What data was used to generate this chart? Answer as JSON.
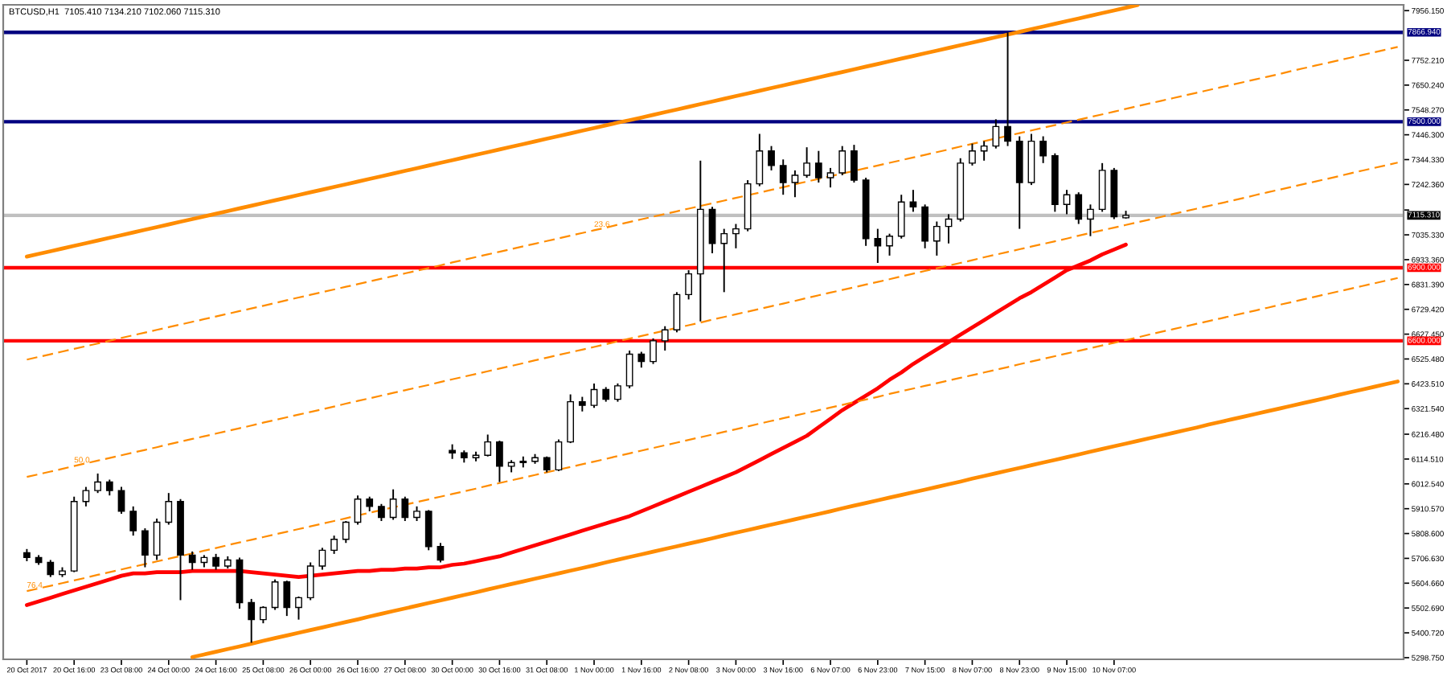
{
  "chart_data": {
    "type": "candlestick",
    "title": "BTCUSD,H1  7105.410 7134.210 7102.060 7115.310",
    "categories": [
      "20 Oct 2017",
      null,
      null,
      null,
      "20 Oct 16:00",
      null,
      null,
      null,
      "23 Oct 08:00",
      null,
      null,
      null,
      "24 Oct 00:00",
      null,
      null,
      null,
      "24 Oct 16:00",
      null,
      null,
      null,
      "25 Oct 08:00",
      null,
      null,
      null,
      "26 Oct 00:00",
      null,
      null,
      null,
      "26 Oct 16:00",
      null,
      null,
      null,
      "27 Oct 08:00",
      null,
      null,
      null,
      "30 Oct 00:00",
      null,
      null,
      null,
      "30 Oct 16:00",
      null,
      null,
      null,
      "31 Oct 08:00",
      null,
      null,
      null,
      "1 Nov 00:00",
      null,
      null,
      null,
      "1 Nov 16:00",
      null,
      null,
      null,
      "2 Nov 08:00",
      null,
      null,
      null,
      "3 Nov 00:00",
      null,
      null,
      null,
      "3 Nov 16:00",
      null,
      null,
      null,
      "6 Nov 07:00",
      null,
      null,
      null,
      "6 Nov 23:00",
      null,
      null,
      null,
      "7 Nov 15:00",
      null,
      null,
      null,
      "8 Nov 07:00",
      null,
      null,
      null,
      "8 Nov 23:00",
      null,
      null,
      null,
      "9 Nov 15:00",
      null,
      null,
      null,
      "10 Nov 07:00",
      null,
      null,
      null,
      null,
      null,
      null,
      null,
      null,
      null,
      null,
      null,
      null,
      null,
      null,
      null,
      null,
      null,
      null,
      null,
      null,
      null,
      null,
      null,
      null
    ],
    "ohlc": [
      [
        5730,
        5745,
        5695,
        5710
      ],
      [
        5710,
        5720,
        5680,
        5690
      ],
      [
        5690,
        5700,
        5630,
        5640
      ],
      [
        5640,
        5670,
        5630,
        5655
      ],
      [
        5655,
        5960,
        5650,
        5940
      ],
      [
        5940,
        6000,
        5920,
        5985
      ],
      [
        5985,
        6055,
        5975,
        6020
      ],
      [
        6020,
        6030,
        5965,
        5985
      ],
      [
        5985,
        6000,
        5890,
        5900
      ],
      [
        5900,
        5920,
        5800,
        5820
      ],
      [
        5820,
        5830,
        5670,
        5720
      ],
      [
        5720,
        5870,
        5700,
        5855
      ],
      [
        5855,
        5975,
        5845,
        5940
      ],
      [
        5940,
        5950,
        5535,
        5720
      ],
      [
        5720,
        5735,
        5660,
        5690
      ],
      [
        5690,
        5720,
        5670,
        5710
      ],
      [
        5710,
        5725,
        5660,
        5675
      ],
      [
        5675,
        5715,
        5665,
        5700
      ],
      [
        5700,
        5710,
        5500,
        5525
      ],
      [
        5525,
        5540,
        5360,
        5455
      ],
      [
        5455,
        5510,
        5440,
        5505
      ],
      [
        5505,
        5620,
        5495,
        5610
      ],
      [
        5610,
        5615,
        5470,
        5505
      ],
      [
        5505,
        5550,
        5455,
        5545
      ],
      [
        5545,
        5690,
        5535,
        5675
      ],
      [
        5675,
        5750,
        5660,
        5740
      ],
      [
        5740,
        5800,
        5725,
        5785
      ],
      [
        5785,
        5860,
        5770,
        5855
      ],
      [
        5855,
        5965,
        5845,
        5950
      ],
      [
        5950,
        5960,
        5900,
        5920
      ],
      [
        5920,
        5930,
        5860,
        5875
      ],
      [
        5875,
        5990,
        5865,
        5950
      ],
      [
        5950,
        5960,
        5860,
        5875
      ],
      [
        5875,
        5920,
        5860,
        5900
      ],
      [
        5900,
        5905,
        5740,
        5755
      ],
      [
        5755,
        5770,
        5690,
        5700
      ],
      [
        6150,
        6175,
        6115,
        6140
      ],
      [
        6140,
        6150,
        6100,
        6120
      ],
      [
        6120,
        6145,
        6105,
        6130
      ],
      [
        6130,
        6215,
        6125,
        6185
      ],
      [
        6185,
        6190,
        6020,
        6085
      ],
      [
        6085,
        6110,
        6060,
        6100
      ],
      [
        6100,
        6125,
        6080,
        6105
      ],
      [
        6105,
        6135,
        6095,
        6120
      ],
      [
        6120,
        6125,
        6060,
        6070
      ],
      [
        6070,
        6195,
        6065,
        6185
      ],
      [
        6185,
        6380,
        6180,
        6350
      ],
      [
        6350,
        6370,
        6310,
        6335
      ],
      [
        6335,
        6425,
        6325,
        6400
      ],
      [
        6400,
        6410,
        6350,
        6360
      ],
      [
        6360,
        6425,
        6350,
        6415
      ],
      [
        6415,
        6560,
        6405,
        6545
      ],
      [
        6545,
        6555,
        6490,
        6515
      ],
      [
        6515,
        6610,
        6505,
        6600
      ],
      [
        6600,
        6660,
        6560,
        6645
      ],
      [
        6645,
        6800,
        6635,
        6790
      ],
      [
        6790,
        6890,
        6770,
        6875
      ],
      [
        6875,
        7340,
        6680,
        7140
      ],
      [
        7140,
        7150,
        6960,
        7000
      ],
      [
        7000,
        7060,
        6800,
        7040
      ],
      [
        7040,
        7080,
        6980,
        7060
      ],
      [
        7060,
        7260,
        7050,
        7245
      ],
      [
        7245,
        7450,
        7235,
        7380
      ],
      [
        7380,
        7400,
        7300,
        7320
      ],
      [
        7320,
        7345,
        7200,
        7250
      ],
      [
        7250,
        7300,
        7190,
        7280
      ],
      [
        7280,
        7395,
        7270,
        7330
      ],
      [
        7330,
        7380,
        7250,
        7270
      ],
      [
        7270,
        7310,
        7230,
        7290
      ],
      [
        7290,
        7400,
        7280,
        7380
      ],
      [
        7380,
        7405,
        7250,
        7260
      ],
      [
        7260,
        7270,
        6990,
        7020
      ],
      [
        7020,
        7060,
        6920,
        6990
      ],
      [
        6990,
        7040,
        6950,
        7030
      ],
      [
        7030,
        7200,
        7020,
        7170
      ],
      [
        7170,
        7220,
        7130,
        7150
      ],
      [
        7150,
        7160,
        6980,
        7010
      ],
      [
        7010,
        7090,
        6950,
        7070
      ],
      [
        7070,
        7120,
        7000,
        7100
      ],
      [
        7100,
        7350,
        7090,
        7330
      ],
      [
        7330,
        7410,
        7320,
        7380
      ],
      [
        7380,
        7420,
        7340,
        7400
      ],
      [
        7400,
        7510,
        7390,
        7480
      ],
      [
        7480,
        7866.94,
        7400,
        7420
      ],
      [
        7420,
        7440,
        7060,
        7250
      ],
      [
        7250,
        7450,
        7240,
        7420
      ],
      [
        7420,
        7440,
        7330,
        7360
      ],
      [
        7360,
        7370,
        7130,
        7160
      ],
      [
        7160,
        7220,
        7120,
        7200
      ],
      [
        7200,
        7210,
        7080,
        7100
      ],
      [
        7100,
        7160,
        7030,
        7140
      ],
      [
        7140,
        7330,
        7130,
        7300
      ],
      [
        7300,
        7310,
        7100,
        7110
      ],
      [
        7105.41,
        7134.21,
        7102.06,
        7115.31
      ],
      null,
      null,
      null,
      null,
      null,
      null,
      null,
      null,
      null,
      null,
      null,
      null,
      null,
      null,
      null,
      null,
      null,
      null,
      null,
      null,
      null,
      null,
      null
    ],
    "series": [
      {
        "type": "line",
        "color": "#ff0000",
        "line_style": "solid",
        "values": [
          5515,
          5530,
          5545,
          5560,
          5575,
          5590,
          5605,
          5620,
          5635,
          5645,
          5645,
          5650,
          5650,
          5650,
          5655,
          5655,
          5655,
          5655,
          5655,
          5650,
          5645,
          5640,
          5635,
          5630,
          5635,
          5640,
          5645,
          5650,
          5655,
          5655,
          5660,
          5660,
          5665,
          5665,
          5670,
          5670,
          5680,
          5685,
          5695,
          5705,
          5715,
          5730,
          5745,
          5760,
          5775,
          5790,
          5805,
          5820,
          5835,
          5850,
          5865,
          5880,
          5900,
          5920,
          5940,
          5960,
          5980,
          6000,
          6020,
          6040,
          6060,
          6085,
          6110,
          6135,
          6160,
          6185,
          6210,
          6245,
          6280,
          6315,
          6345,
          6375,
          6405,
          6440,
          6470,
          6505,
          6535,
          6565,
          6595,
          6625,
          6655,
          6685,
          6715,
          6745,
          6775,
          6800,
          6830,
          6860,
          6890,
          6910,
          6930,
          6955,
          6975,
          6995,
          null,
          null,
          null,
          null,
          null,
          null,
          null,
          null,
          null,
          null,
          null,
          null,
          null,
          null,
          null,
          null,
          null,
          null,
          null,
          null,
          null,
          null,
          null
        ]
      },
      {
        "type": "line",
        "color": "#ff8c00",
        "line_style": "solid",
        "values": [
          6946,
          6957,
          6968,
          6979,
          6990,
          7001,
          7012,
          7023,
          7034,
          7045,
          7056,
          7067,
          7078,
          7089,
          7100,
          7111,
          7122,
          7133,
          7144,
          7155,
          7166,
          7177,
          7188,
          7199,
          7210,
          7221,
          7232,
          7243,
          7254,
          7265,
          7276,
          7287,
          7298,
          7309,
          7320,
          7331,
          7342,
          7353,
          7364,
          7375,
          7386,
          7397,
          7408,
          7419,
          7430,
          7441,
          7452,
          7463,
          7474,
          7485,
          7496,
          7506,
          7517,
          7528,
          7539,
          7550,
          7561,
          7572,
          7583,
          7594,
          7605,
          7616,
          7627,
          7638,
          7649,
          7660,
          7671,
          7682,
          7693,
          7704,
          7715,
          7726,
          7737,
          7748,
          7759,
          7770,
          7781,
          7792,
          7803,
          7814,
          7825,
          7836,
          7847,
          7858,
          7869,
          7880,
          7891,
          7902,
          7913,
          7924,
          7935,
          7946,
          7957,
          7968,
          7979,
          null,
          null,
          null,
          null,
          null,
          null,
          null,
          null,
          null,
          null,
          null,
          null,
          null,
          null,
          null,
          null,
          null,
          null,
          null,
          null,
          null,
          null
        ]
      },
      {
        "type": "line",
        "color": "#ff8c00",
        "line_style": "solid",
        "values": [
          null,
          null,
          null,
          null,
          null,
          null,
          null,
          null,
          null,
          null,
          null,
          null,
          null,
          null,
          5301,
          5312,
          5323,
          5334,
          5345,
          5356,
          5368,
          5379,
          5390,
          5401,
          5412,
          5423,
          5434,
          5445,
          5456,
          5468,
          5479,
          5490,
          5501,
          5512,
          5523,
          5534,
          5545,
          5556,
          5567,
          5579,
          5590,
          5601,
          5612,
          5623,
          5634,
          5645,
          5656,
          5667,
          5678,
          5690,
          5701,
          5712,
          5723,
          5734,
          5745,
          5756,
          5767,
          5778,
          5789,
          5801,
          5812,
          5823,
          5834,
          5845,
          5856,
          5867,
          5878,
          5889,
          5900,
          5912,
          5923,
          5934,
          5945,
          5956,
          5967,
          5978,
          5989,
          6000,
          6011,
          6022,
          6034,
          6045,
          6056,
          6067,
          6078,
          6089,
          6100,
          6111,
          6122,
          6133,
          6145,
          6156,
          6167,
          6178,
          6189,
          6200,
          6211,
          6222,
          6233,
          6244,
          6256,
          6267,
          6278,
          6289,
          6300,
          6311,
          6322,
          6333,
          6344,
          6355,
          6366,
          6378,
          6389,
          6400,
          6411,
          6422,
          6433
        ]
      },
      {
        "type": "line",
        "color": "#ff8c00",
        "line_style": "dashed",
        "values": [
          6523,
          6534,
          6545,
          6556,
          6567,
          6578,
          6589,
          6600,
          6612,
          6623,
          6634,
          6645,
          6656,
          6667,
          6678,
          6689,
          6700,
          6711,
          6722,
          6733,
          6744,
          6755,
          6767,
          6778,
          6789,
          6800,
          6811,
          6822,
          6833,
          6844,
          6855,
          6866,
          6877,
          6888,
          6899,
          6910,
          6922,
          6933,
          6944,
          6955,
          6966,
          6977,
          6988,
          6999,
          7010,
          7021,
          7032,
          7043,
          7054,
          7065,
          7077,
          7088,
          7099,
          7110,
          7121,
          7132,
          7143,
          7154,
          7165,
          7176,
          7187,
          7198,
          7209,
          7220,
          7231,
          7243,
          7254,
          7265,
          7276,
          7287,
          7298,
          7309,
          7320,
          7331,
          7342,
          7353,
          7364,
          7375,
          7386,
          7398,
          7409,
          7420,
          7431,
          7442,
          7453,
          7464,
          7475,
          7486,
          7497,
          7508,
          7519,
          7530,
          7541,
          7553,
          7564,
          7575,
          7586,
          7597,
          7608,
          7619,
          7630,
          7641,
          7652,
          7663,
          7674,
          7685,
          7696,
          7708,
          7719,
          7730,
          7741,
          7752,
          7763,
          7774,
          7785,
          7796,
          7807
        ]
      },
      {
        "type": "line",
        "color": "#ff8c00",
        "line_style": "dashed",
        "values": [
          6041,
          6052,
          6063,
          6074,
          6086,
          6097,
          6108,
          6119,
          6130,
          6141,
          6152,
          6163,
          6175,
          6186,
          6197,
          6208,
          6219,
          6230,
          6241,
          6252,
          6264,
          6275,
          6286,
          6297,
          6308,
          6319,
          6330,
          6342,
          6353,
          6364,
          6375,
          6386,
          6397,
          6408,
          6419,
          6431,
          6442,
          6453,
          6464,
          6475,
          6486,
          6497,
          6508,
          6520,
          6531,
          6542,
          6553,
          6564,
          6575,
          6586,
          6598,
          6609,
          6620,
          6631,
          6642,
          6653,
          6664,
          6675,
          6687,
          6698,
          6709,
          6720,
          6731,
          6742,
          6753,
          6764,
          6776,
          6787,
          6798,
          6809,
          6820,
          6831,
          6842,
          6853,
          6865,
          6876,
          6887,
          6898,
          6909,
          6920,
          6931,
          6943,
          6954,
          6965,
          6976,
          6987,
          6998,
          7009,
          7020,
          7032,
          7043,
          7054,
          7065,
          7076,
          7087,
          7098,
          7109,
          7121,
          7132,
          7143,
          7154,
          7165,
          7176,
          7187,
          7199,
          7210,
          7221,
          7232,
          7243,
          7254,
          7265,
          7276,
          7288,
          7299,
          7310,
          7321,
          7332
        ]
      },
      {
        "type": "line",
        "color": "#ff8c00",
        "line_style": "dashed",
        "values": [
          5572,
          5583,
          5594,
          5605,
          5616,
          5627,
          5639,
          5650,
          5661,
          5672,
          5683,
          5694,
          5705,
          5716,
          5727,
          5738,
          5749,
          5761,
          5772,
          5783,
          5794,
          5805,
          5816,
          5827,
          5838,
          5849,
          5860,
          5871,
          5883,
          5894,
          5905,
          5916,
          5927,
          5938,
          5949,
          5960,
          5971,
          5982,
          5993,
          6005,
          6016,
          6027,
          6038,
          6049,
          6060,
          6071,
          6082,
          6093,
          6104,
          6115,
          6127,
          6138,
          6149,
          6160,
          6171,
          6182,
          6193,
          6204,
          6215,
          6226,
          6237,
          6248,
          6260,
          6271,
          6282,
          6293,
          6304,
          6315,
          6326,
          6337,
          6348,
          6359,
          6370,
          6382,
          6393,
          6404,
          6415,
          6426,
          6437,
          6448,
          6459,
          6470,
          6481,
          6492,
          6504,
          6515,
          6526,
          6537,
          6548,
          6559,
          6570,
          6581,
          6592,
          6603,
          6614,
          6626,
          6637,
          6648,
          6659,
          6670,
          6681,
          6692,
          6703,
          6714,
          6725,
          6736,
          6748,
          6759,
          6770,
          6781,
          6792,
          6803,
          6814,
          6825,
          6836,
          6847,
          6858
        ]
      }
    ],
    "ref_lines": [
      {
        "axis": "y",
        "value": 7866.94,
        "label": "7866.940",
        "color": "#000080"
      },
      {
        "axis": "y",
        "value": 7500,
        "label": "7500.000",
        "color": "#000080"
      },
      {
        "axis": "y",
        "value": 7115.31,
        "label": "7115.310",
        "color": "#c0c0c0"
      },
      {
        "axis": "y",
        "value": 6900,
        "label": "6900.000",
        "color": "#ff0000"
      },
      {
        "axis": "y",
        "value": 6600,
        "label": "6600.000",
        "color": "#ff0000"
      }
    ],
    "annotations": [
      {
        "text": "23.6",
        "x": "1 Nov 00:00",
        "y": 7054
      },
      {
        "text": "50.0",
        "x": "20 Oct 16:00",
        "y": 6086
      },
      {
        "text": "76.4",
        "x": "20 Oct 2017",
        "y": 5572
      }
    ],
    "ylim": [
      5292,
      7980
    ],
    "yticks": [
      {
        "value": 7956.15,
        "label": "7956.150"
      },
      {
        "value": 7752.21,
        "label": "7752.210"
      },
      {
        "value": 7650.24,
        "label": "7650.240"
      },
      {
        "value": 7548.27,
        "label": "7548.270"
      },
      {
        "value": 7446.3,
        "label": "7446.300"
      },
      {
        "value": 7344.33,
        "label": "7344.330"
      },
      {
        "value": 7242.36,
        "label": "7242.360"
      },
      {
        "value": 7137.3,
        "label": null
      },
      {
        "value": 7035.33,
        "label": "7035.330"
      },
      {
        "value": 6933.36,
        "label": "6933.360"
      },
      {
        "value": 6831.39,
        "label": "6831.390"
      },
      {
        "value": 6729.42,
        "label": "6729.420"
      },
      {
        "value": 6627.45,
        "label": "6627.450"
      },
      {
        "value": 6525.48,
        "label": "6525.480"
      },
      {
        "value": 6423.51,
        "label": "6423.510"
      },
      {
        "value": 6321.54,
        "label": "6321.540"
      },
      {
        "value": 6216.48,
        "label": "6216.480"
      },
      {
        "value": 6114.51,
        "label": "6114.510"
      },
      {
        "value": 6012.54,
        "label": "6012.540"
      },
      {
        "value": 5910.57,
        "label": "5910.570"
      },
      {
        "value": 5808.6,
        "label": "5808.600"
      },
      {
        "value": 5706.63,
        "label": "5706.630"
      },
      {
        "value": 5604.66,
        "label": "5604.660"
      },
      {
        "value": 5502.69,
        "label": "5502.690"
      },
      {
        "value": 5400.72,
        "label": "5400.720"
      },
      {
        "value": 5298.75,
        "label": "5298.750"
      }
    ]
  }
}
